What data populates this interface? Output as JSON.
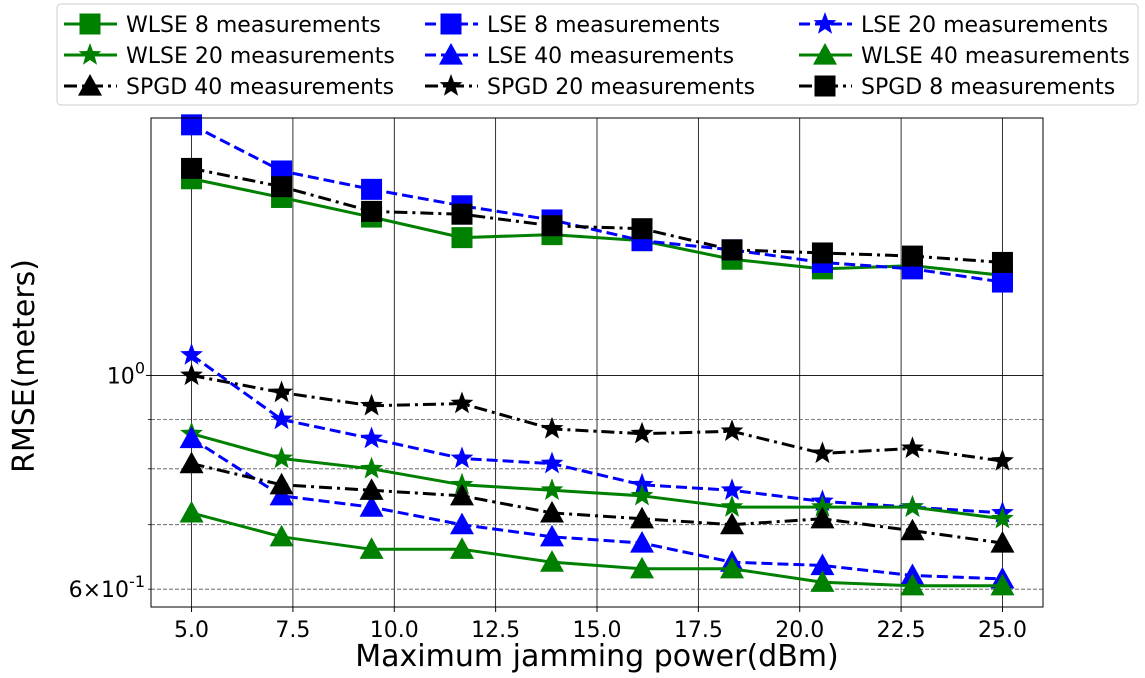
{
  "chart_data": {
    "type": "line",
    "title": "",
    "xlabel": "Maximum jamming power(dBm)",
    "ylabel": "RMSE(meters)",
    "xlim": [
      4.0,
      26.0
    ],
    "ylim": [
      0.575,
      1.85
    ],
    "yscale": "log",
    "grid": true,
    "x_ticks": [
      5.0,
      7.5,
      10.0,
      12.5,
      15.0,
      17.5,
      20.0,
      22.5,
      25.0
    ],
    "x_tick_labels": [
      "5.0",
      "7.5",
      "10.0",
      "12.5",
      "15.0",
      "17.5",
      "20.0",
      "22.5",
      "25.0"
    ],
    "y_major_ticks": [
      1.0
    ],
    "y_major_tick_labels": [
      "10^0"
    ],
    "y_minor_ticks": [
      0.6,
      0.7,
      0.8,
      0.9
    ],
    "y_minor_tick_labels": [
      "6×10^-1"
    ],
    "legend_position": "top, outside, 3 columns",
    "x": [
      5.0,
      7.22,
      9.44,
      11.67,
      13.89,
      16.11,
      18.33,
      20.56,
      22.78,
      25.0
    ],
    "series": [
      {
        "name": "WLSE 8 measurements",
        "color": "#008000",
        "marker": "square",
        "linestyle": "solid",
        "values": [
          1.6,
          1.53,
          1.46,
          1.39,
          1.4,
          1.38,
          1.32,
          1.29,
          1.3,
          1.27
        ]
      },
      {
        "name": "LSE 8 measurements",
        "color": "#0000ff",
        "marker": "square",
        "linestyle": "dashed",
        "values": [
          1.82,
          1.63,
          1.56,
          1.5,
          1.45,
          1.38,
          1.35,
          1.31,
          1.29,
          1.25
        ]
      },
      {
        "name": "LSE 20 measurements",
        "color": "#0000ff",
        "marker": "star",
        "linestyle": "dashed",
        "values": [
          1.05,
          0.9,
          0.86,
          0.82,
          0.81,
          0.77,
          0.76,
          0.74,
          0.73,
          0.72
        ]
      },
      {
        "name": "WLSE 20 measurements",
        "color": "#008000",
        "marker": "star",
        "linestyle": "solid",
        "values": [
          0.87,
          0.82,
          0.8,
          0.77,
          0.76,
          0.75,
          0.73,
          0.73,
          0.73,
          0.71
        ]
      },
      {
        "name": "LSE 40 measurements",
        "color": "#0000ff",
        "marker": "triangle",
        "linestyle": "dashed",
        "values": [
          0.86,
          0.75,
          0.73,
          0.7,
          0.68,
          0.67,
          0.64,
          0.635,
          0.62,
          0.615
        ]
      },
      {
        "name": "WLSE 40 measurements",
        "color": "#008000",
        "marker": "triangle",
        "linestyle": "solid",
        "values": [
          0.72,
          0.68,
          0.66,
          0.66,
          0.64,
          0.63,
          0.63,
          0.61,
          0.605,
          0.605
        ]
      },
      {
        "name": "SPGD 40 measurements",
        "color": "#000000",
        "marker": "triangle",
        "linestyle": "dashdot",
        "values": [
          0.81,
          0.77,
          0.76,
          0.75,
          0.72,
          0.71,
          0.7,
          0.71,
          0.69,
          0.67
        ]
      },
      {
        "name": "SPGD 20 measurements",
        "color": "#000000",
        "marker": "star",
        "linestyle": "dashdot",
        "values": [
          1.0,
          0.96,
          0.93,
          0.935,
          0.88,
          0.87,
          0.875,
          0.83,
          0.84,
          0.815
        ]
      },
      {
        "name": "SPGD 8 measurements",
        "color": "#000000",
        "marker": "square",
        "linestyle": "dashdot",
        "values": [
          1.64,
          1.57,
          1.48,
          1.47,
          1.43,
          1.42,
          1.35,
          1.34,
          1.33,
          1.31
        ]
      }
    ],
    "legend_order": [
      0,
      3,
      6,
      1,
      4,
      7,
      2,
      5,
      8
    ]
  }
}
